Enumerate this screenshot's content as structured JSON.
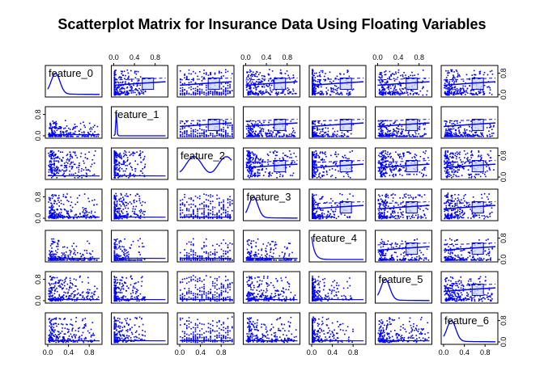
{
  "chart_data": {
    "type": "scatter",
    "title": "Scatterplot Matrix for Insurance Data Using Floating Variables",
    "variables": [
      "feature_0",
      "feature_1",
      "feature_2",
      "feature_3",
      "feature_4",
      "feature_5",
      "feature_6"
    ],
    "axis_range": [
      0,
      1
    ],
    "tick_labels": [
      "0.0",
      "0.4",
      "0.8"
    ],
    "side_tick_labels": [
      "0.0",
      "0.8"
    ],
    "point_color": "#0000ff",
    "smoother_fill": "#d0d8ff",
    "diagonal": "density"
  }
}
